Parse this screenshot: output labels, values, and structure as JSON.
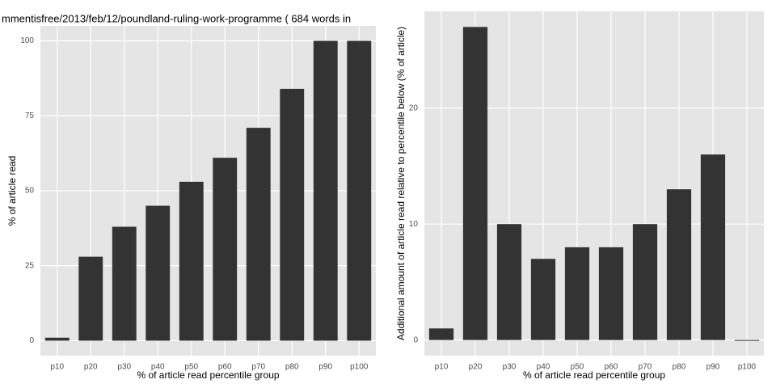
{
  "chart_data": [
    {
      "type": "bar",
      "title": "mmentisfree/2013/feb/12/poundland-ruling-work-programme ( 684 words in",
      "x_label": "% of article read percentile group",
      "y_label": "% of article read",
      "categories": [
        "p10",
        "p20",
        "p30",
        "p40",
        "p50",
        "p60",
        "p70",
        "p80",
        "p90",
        "p100"
      ],
      "values": [
        1,
        28,
        38,
        45,
        53,
        61,
        71,
        84,
        100,
        100
      ],
      "color": "#333333",
      "ylim": [
        -5,
        105
      ],
      "yticks": [
        0,
        25,
        50,
        75,
        100
      ],
      "grid": true
    },
    {
      "type": "bar",
      "x_label": "% of article read percentile group",
      "y_label": "Additional amount of article read relative to percentile below (% of article)",
      "categories": [
        "p10",
        "p20",
        "p30",
        "p40",
        "p50",
        "p60",
        "p70",
        "p80",
        "p90",
        "p100"
      ],
      "values": [
        1,
        27,
        10,
        7,
        8,
        8,
        10,
        13,
        16,
        0
      ],
      "color": "#333333",
      "ylim": [
        -1.35,
        28.35
      ],
      "yticks": [
        0,
        10,
        20
      ],
      "grid": true
    }
  ]
}
